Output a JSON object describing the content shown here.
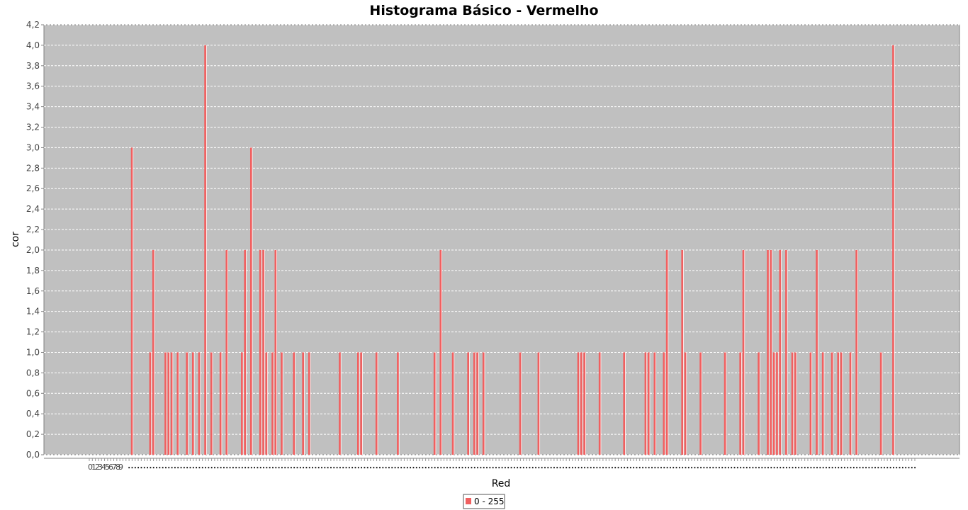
{
  "chart_data": {
    "type": "bar",
    "title": "Histograma Básico - Vermelho",
    "xlabel": "Red",
    "ylabel": "cor",
    "ylim": [
      0,
      4.2
    ],
    "yticks": [
      "0,0",
      "0,2",
      "0,4",
      "0,6",
      "0,8",
      "1,0",
      "1,2",
      "1,4",
      "1,6",
      "1,8",
      "2,0",
      "2,2",
      "2,4",
      "2,6",
      "2,8",
      "3,0",
      "3,2",
      "3,4",
      "3,6",
      "3,8",
      "4,0",
      "4,2"
    ],
    "grid": true,
    "legend_position": "bottom",
    "bar_color": "#f06060",
    "plot_background": "#c0c0c0",
    "x_tick_labels": [
      "0",
      "1",
      "2",
      "3",
      "4",
      "5",
      "6",
      "7",
      "8",
      "9"
    ],
    "x_range": [
      0,
      255
    ],
    "series": [
      {
        "name": "0 - 255",
        "x": [
          14,
          20,
          21,
          25,
          26,
          27,
          29,
          32,
          34,
          36,
          38,
          40,
          43,
          45,
          50,
          51,
          53,
          56,
          57,
          58,
          60,
          61,
          63,
          67,
          70,
          72,
          82,
          88,
          89,
          94,
          101,
          113,
          115,
          119,
          124,
          126,
          127,
          129,
          141,
          147,
          160,
          161,
          162,
          167,
          175,
          182,
          183,
          185,
          188,
          189,
          194,
          195,
          200,
          208,
          213,
          214,
          219,
          222,
          223,
          224,
          225,
          226,
          228,
          230,
          231,
          236,
          238,
          240,
          243,
          245,
          246,
          249,
          251,
          259,
          263
        ],
        "values": [
          3,
          1,
          2,
          1,
          1,
          1,
          1,
          1,
          1,
          1,
          4,
          1,
          1,
          2,
          1,
          2,
          3,
          2,
          2,
          1,
          1,
          2,
          1,
          1,
          1,
          1,
          1,
          1,
          1,
          1,
          1,
          1,
          2,
          1,
          1,
          1,
          1,
          1,
          1,
          1,
          1,
          1,
          1,
          1,
          1,
          1,
          1,
          1,
          1,
          2,
          2,
          1,
          1,
          1,
          1,
          2,
          1,
          2,
          2,
          1,
          1,
          2,
          2,
          1,
          1,
          1,
          2,
          1,
          1,
          1,
          1,
          1,
          2,
          1,
          4
        ]
      }
    ]
  }
}
